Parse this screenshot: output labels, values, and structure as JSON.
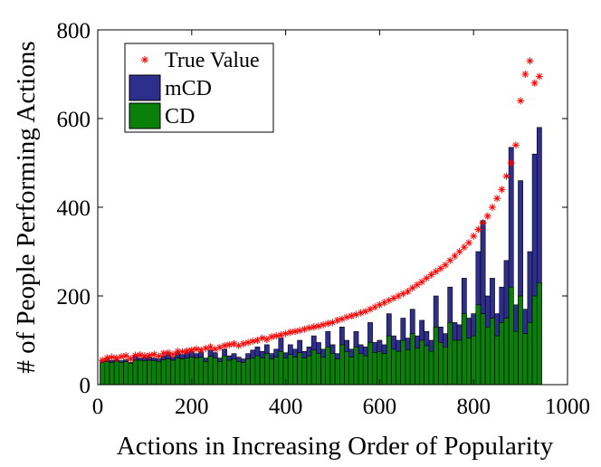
{
  "chart_data": {
    "type": "bar",
    "xlabel": "Actions in Increasing Order of Popularity",
    "ylabel": "# of People Performing Actions",
    "x": [
      10,
      20,
      30,
      40,
      50,
      60,
      70,
      80,
      90,
      100,
      110,
      120,
      130,
      140,
      150,
      160,
      170,
      180,
      190,
      200,
      210,
      220,
      230,
      240,
      250,
      260,
      270,
      280,
      290,
      300,
      310,
      320,
      330,
      340,
      350,
      360,
      370,
      380,
      390,
      400,
      410,
      420,
      430,
      440,
      450,
      460,
      470,
      480,
      490,
      500,
      510,
      520,
      530,
      540,
      550,
      560,
      570,
      580,
      590,
      600,
      610,
      620,
      630,
      640,
      650,
      660,
      670,
      680,
      690,
      700,
      710,
      720,
      730,
      740,
      750,
      760,
      770,
      780,
      790,
      800,
      810,
      820,
      830,
      840,
      850,
      860,
      870,
      880,
      890,
      900,
      910,
      920,
      930,
      940
    ],
    "series": [
      {
        "name": "True Value",
        "color": "#ff0000",
        "marker": "asterisk",
        "values": [
          55,
          60,
          62,
          60,
          63,
          65,
          58,
          66,
          67,
          65,
          66,
          68,
          64,
          70,
          72,
          68,
          75,
          74,
          76,
          78,
          80,
          78,
          82,
          85,
          80,
          84,
          88,
          90,
          92,
          88,
          92,
          95,
          98,
          100,
          105,
          102,
          108,
          110,
          112,
          115,
          118,
          120,
          122,
          125,
          128,
          130,
          132,
          135,
          138,
          140,
          145,
          148,
          152,
          155,
          158,
          162,
          165,
          170,
          175,
          180,
          185,
          190,
          195,
          200,
          205,
          210,
          218,
          225,
          232,
          240,
          248,
          255,
          262,
          270,
          280,
          290,
          300,
          310,
          320,
          335,
          350,
          365,
          380,
          400,
          420,
          440,
          470,
          500,
          540,
          640,
          700,
          730,
          680,
          695
        ]
      },
      {
        "name": "mCD",
        "color": "#2e2e8c",
        "values": [
          55,
          58,
          55,
          57,
          54,
          56,
          50,
          65,
          60,
          62,
          63,
          60,
          58,
          65,
          70,
          62,
          72,
          68,
          72,
          75,
          70,
          74,
          60,
          78,
          72,
          60,
          80,
          65,
          70,
          62,
          58,
          70,
          78,
          85,
          75,
          90,
          70,
          80,
          105,
          72,
          90,
          80,
          100,
          75,
          85,
          110,
          95,
          80,
          120,
          90,
          70,
          130,
          100,
          80,
          120,
          90,
          85,
          140,
          95,
          100,
          90,
          160,
          110,
          100,
          150,
          105,
          170,
          110,
          145,
          120,
          100,
          200,
          130,
          115,
          220,
          140,
          135,
          240,
          150,
          160,
          300,
          370,
          200,
          240,
          160,
          220,
          280,
          535,
          180,
          460,
          170,
          300,
          520,
          580
        ]
      },
      {
        "name": "CD",
        "color": "#0a800a",
        "values": [
          50,
          52,
          50,
          53,
          50,
          52,
          48,
          55,
          55,
          54,
          55,
          54,
          52,
          56,
          58,
          55,
          60,
          58,
          60,
          62,
          60,
          62,
          52,
          64,
          60,
          52,
          65,
          55,
          58,
          52,
          50,
          58,
          60,
          65,
          60,
          70,
          58,
          62,
          75,
          60,
          68,
          62,
          72,
          60,
          65,
          78,
          70,
          62,
          85,
          70,
          58,
          90,
          75,
          62,
          85,
          70,
          65,
          95,
          72,
          75,
          70,
          110,
          80,
          75,
          100,
          78,
          115,
          82,
          100,
          88,
          75,
          130,
          95,
          85,
          140,
          100,
          100,
          160,
          105,
          110,
          180,
          160,
          130,
          150,
          110,
          140,
          150,
          220,
          120,
          200,
          115,
          140,
          200,
          230
        ]
      }
    ],
    "bar_width": 10,
    "xlim": [
      0,
      1000
    ],
    "xticks": [
      0,
      200,
      400,
      600,
      800,
      1000
    ],
    "ylim": [
      0,
      800
    ],
    "yticks": [
      0,
      200,
      400,
      600,
      800
    ],
    "legend": "upper left"
  }
}
